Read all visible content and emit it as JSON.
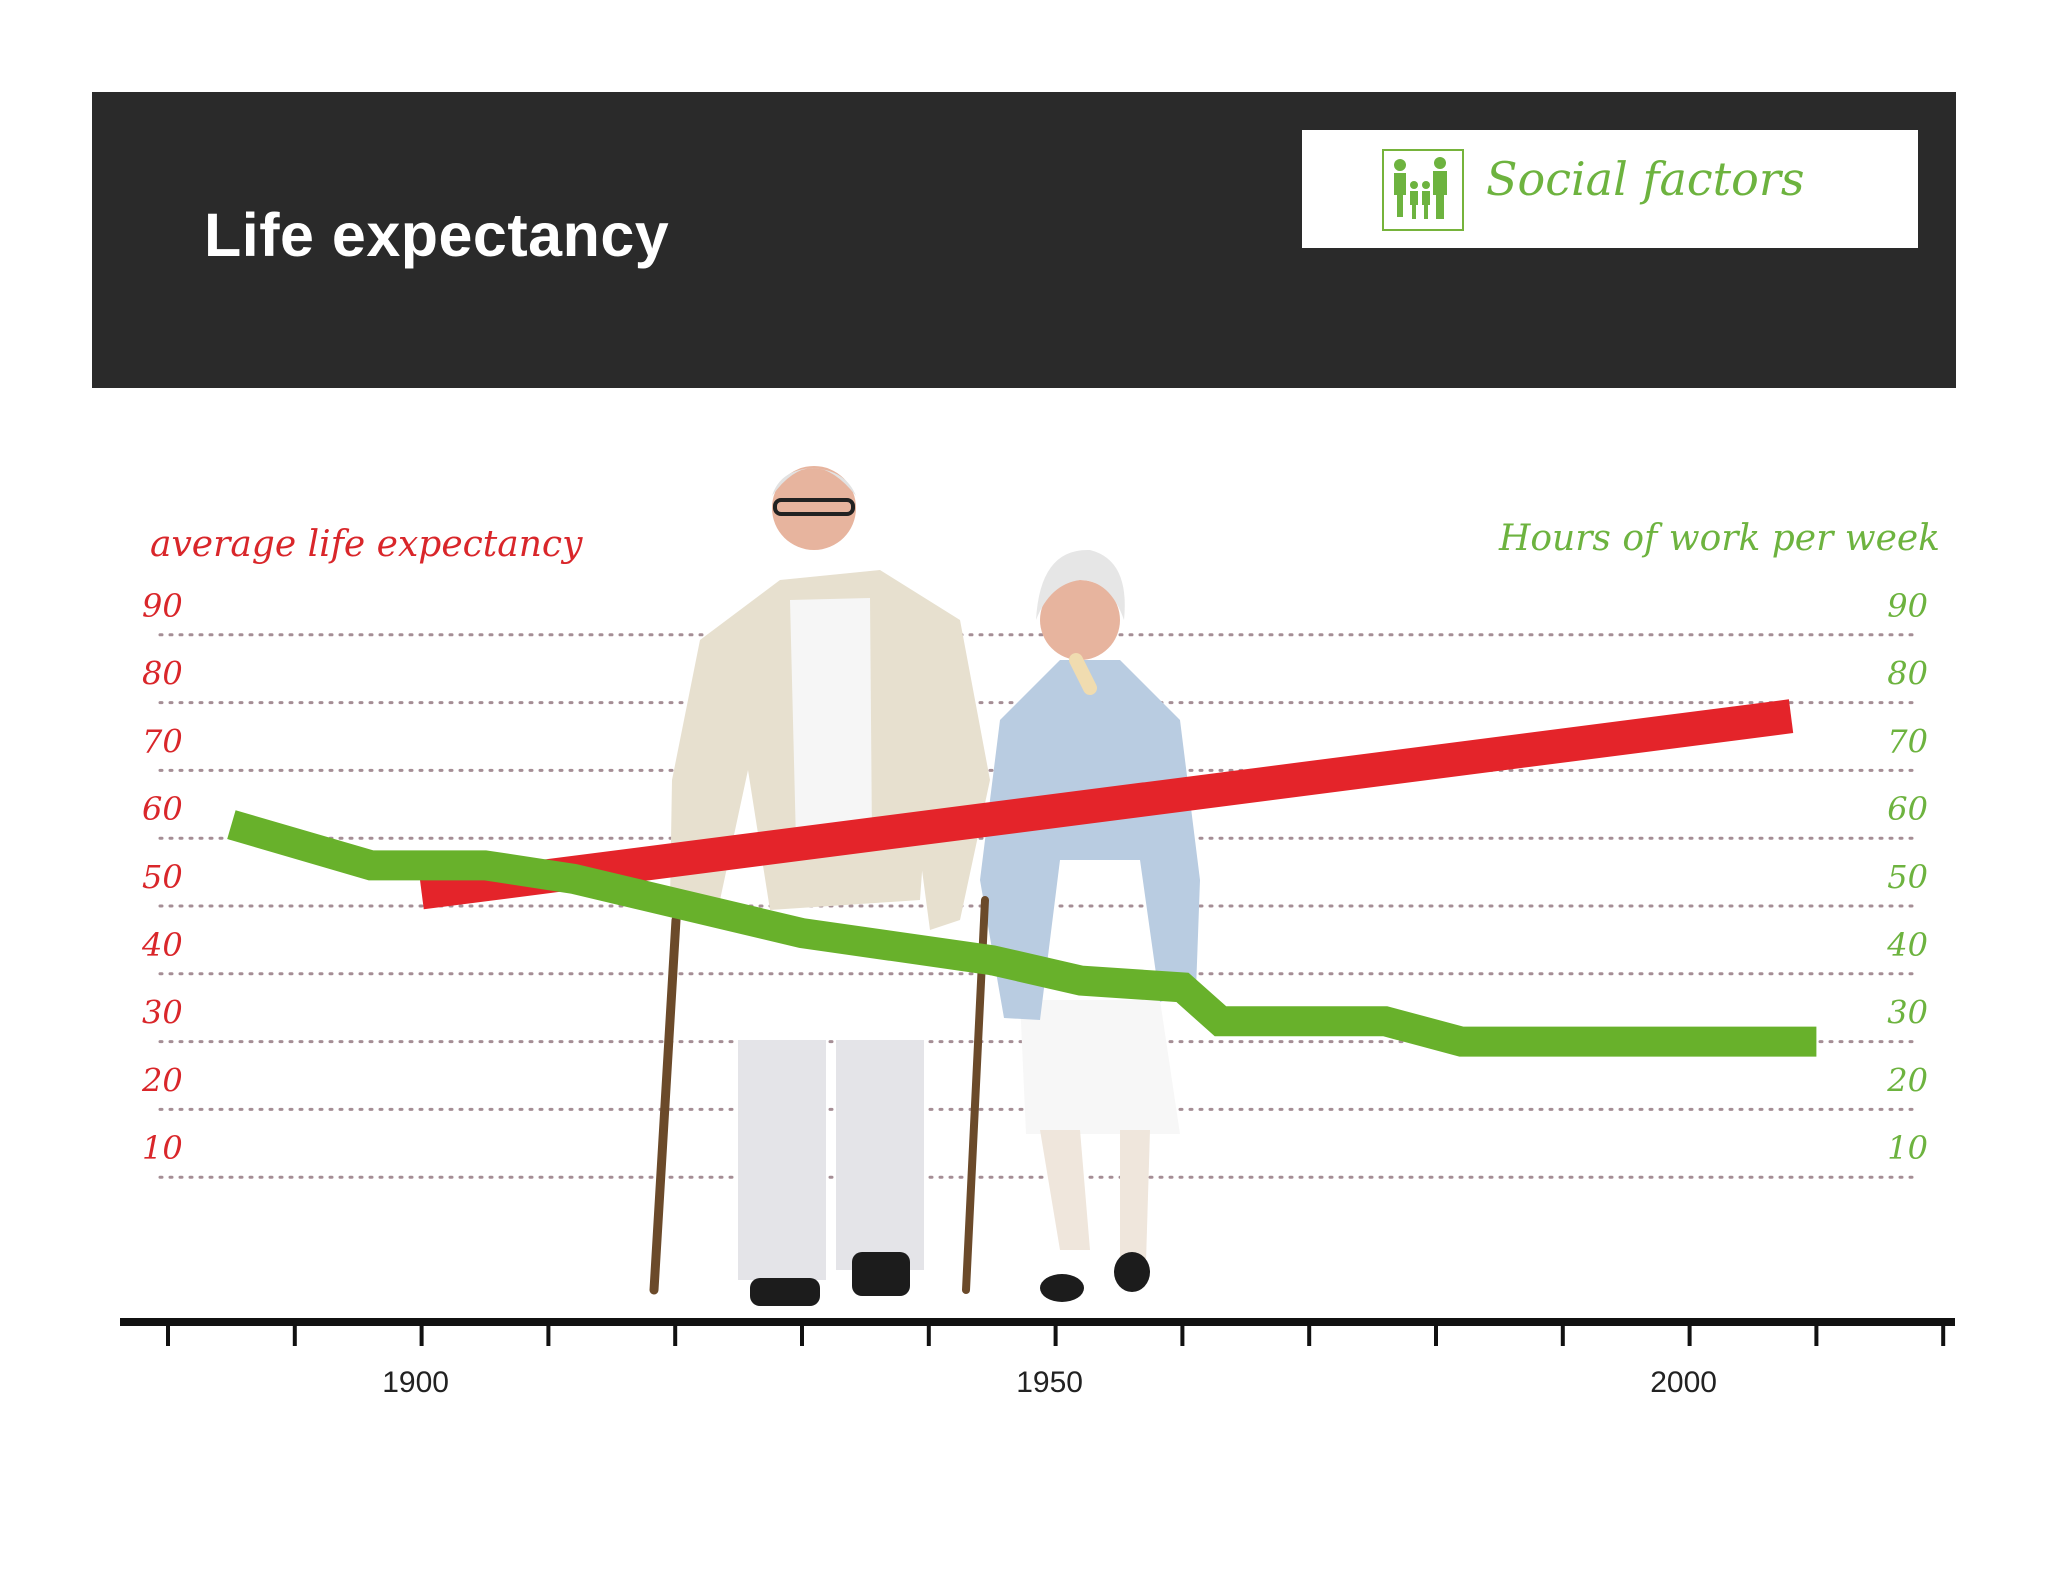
{
  "header": {
    "title": "Life expectancy",
    "badge_label": "Social factors",
    "badge_icon": "family-silhouette-icon"
  },
  "colors": {
    "header_bg": "#2a2a2a",
    "life_expectancy": "#e4242a",
    "work_hours": "#68b12b",
    "axis": "#111111"
  },
  "chart_data": {
    "type": "line",
    "xlabel": "",
    "xlim": [
      1880,
      2020
    ],
    "x_ticks": [
      1880,
      1890,
      1900,
      1910,
      1920,
      1930,
      1940,
      1950,
      1960,
      1970,
      1980,
      1990,
      2000,
      2010,
      2020
    ],
    "x_tick_labels": [
      {
        "value": 1900,
        "label": "1900"
      },
      {
        "value": 1950,
        "label": "1950"
      },
      {
        "value": 2000,
        "label": "2000"
      }
    ],
    "ylim": [
      0,
      100
    ],
    "y_ticks": [
      10,
      20,
      30,
      40,
      50,
      60,
      70,
      80,
      90
    ],
    "y_tick_labels_left": [
      "10",
      "20",
      "30",
      "40",
      "50",
      "60",
      "70",
      "80",
      "90"
    ],
    "y_tick_labels_right": [
      "10",
      "20",
      "30",
      "40",
      "50",
      "60",
      "70",
      "80",
      "90"
    ],
    "ylabel_left": "average life expectancy",
    "ylabel_right": "Hours of work per week",
    "grid": "horizontal dotted",
    "series": [
      {
        "name": "average life expectancy",
        "axis": "left",
        "color": "#e4242a",
        "x": [
          1900,
          2008
        ],
        "y": [
          52,
          78
        ]
      },
      {
        "name": "Hours of work per week",
        "axis": "right",
        "color": "#68b12b",
        "x": [
          1885,
          1896,
          1905,
          1912,
          1930,
          1945,
          1952,
          1960,
          1963,
          1976,
          1982,
          2010
        ],
        "y": [
          62,
          56,
          56,
          54,
          46,
          42,
          39,
          38,
          33,
          33,
          30,
          30
        ]
      }
    ]
  }
}
